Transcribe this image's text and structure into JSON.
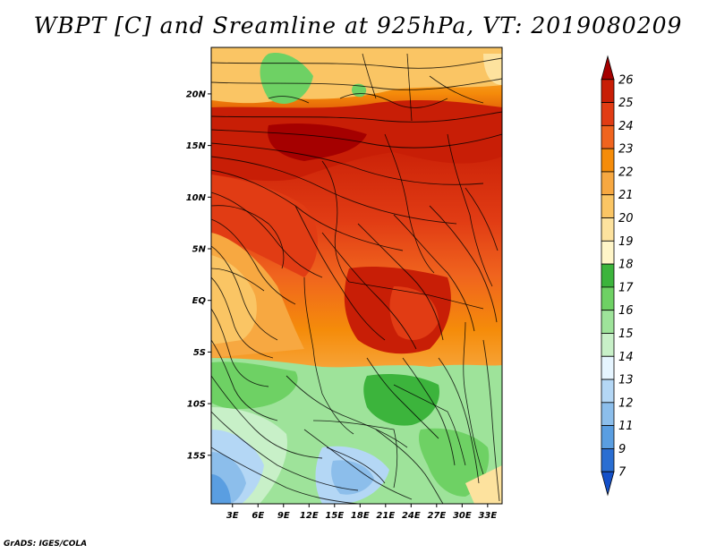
{
  "title": "WBPT [C] and Sreamline at 925hPa, VT: 2019080209",
  "credit": "GrADS: IGES/COLA",
  "map": {
    "variable": "Wet-bulb potential temperature",
    "units": "C",
    "level": "925hPa",
    "lat_labels": [
      "20N",
      "15N",
      "10N",
      "5N",
      "EQ",
      "5S",
      "10S",
      "15S"
    ],
    "lat_values": [
      20,
      15,
      10,
      5,
      0,
      -5,
      -10,
      -15
    ],
    "lon_labels": [
      "3E",
      "6E",
      "9E",
      "12E",
      "15E",
      "18E",
      "21E",
      "24E",
      "27E",
      "30E",
      "33E"
    ],
    "lon_values": [
      3,
      6,
      9,
      12,
      15,
      18,
      21,
      24,
      27,
      30,
      33
    ],
    "lat_range": [
      -19.7,
      24.5
    ],
    "lon_range": [
      0.5,
      34.7
    ]
  },
  "colorbar": {
    "labels": [
      "26",
      "25",
      "24",
      "23",
      "22",
      "21",
      "20",
      "19",
      "18",
      "17",
      "16",
      "15",
      "14",
      "13",
      "12",
      "11",
      "9",
      "7"
    ],
    "colors": [
      "#a50000",
      "#c81e06",
      "#e13c14",
      "#f0641e",
      "#f58c0a",
      "#f7a841",
      "#fac564",
      "#fde29e",
      "#fff5c8",
      "#3cb43c",
      "#6ed164",
      "#9ee39a",
      "#c8f0c8",
      "#e6f5ff",
      "#b4d7f5",
      "#8cbeeb",
      "#5a9ee1",
      "#2a6ed2",
      "#1450c8"
    ]
  }
}
